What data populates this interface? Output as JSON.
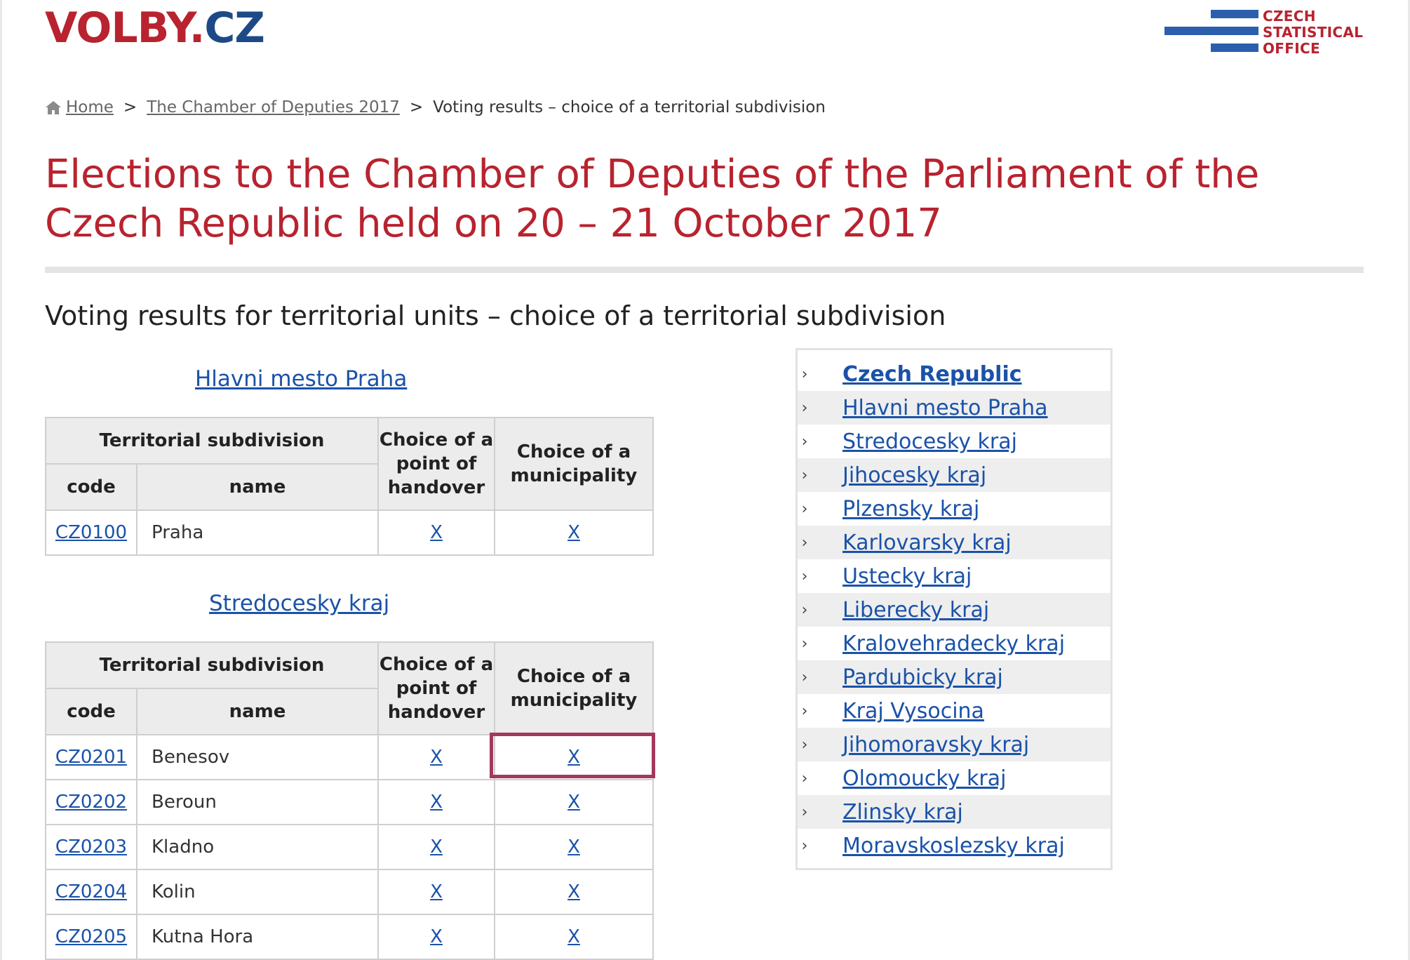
{
  "header": {
    "logo_part1": "VOLBY.",
    "logo_part2": "CZ",
    "cso_line1": "CZECH",
    "cso_line2": "STATISTICAL",
    "cso_line3": "OFFICE"
  },
  "breadcrumb": {
    "home": "Home",
    "sep1": ">",
    "level1": "The Chamber of Deputies 2017",
    "sep2": ">",
    "current": "Voting results – choice of a territorial subdivision"
  },
  "page": {
    "title": "Elections to the Chamber of Deputies of the Parliament of the Czech Republic held on 20 – 21 October 2017",
    "subtitle": "Voting results for territorial units – choice of a territorial subdivision"
  },
  "table_headers": {
    "territorial_subdivision": "Territorial subdivision",
    "code": "code",
    "name": "name",
    "point_of_handover": "Choice of a point of handover",
    "municipality": "Choice of a municipality"
  },
  "sections": [
    {
      "region": "Hlavni mesto Praha",
      "rows": [
        {
          "code": "CZ0100",
          "name": "Praha",
          "point": "X",
          "muni": "X"
        }
      ]
    },
    {
      "region": "Stredocesky kraj",
      "rows": [
        {
          "code": "CZ0201",
          "name": "Benesov",
          "point": "X",
          "muni": "X"
        },
        {
          "code": "CZ0202",
          "name": "Beroun",
          "point": "X",
          "muni": "X"
        },
        {
          "code": "CZ0203",
          "name": "Kladno",
          "point": "X",
          "muni": "X"
        },
        {
          "code": "CZ0204",
          "name": "Kolin",
          "point": "X",
          "muni": "X"
        },
        {
          "code": "CZ0205",
          "name": "Kutna Hora",
          "point": "X",
          "muni": "X"
        }
      ]
    }
  ],
  "regions_nav": [
    "Czech Republic",
    "Hlavni mesto Praha",
    "Stredocesky kraj",
    "Jihocesky kraj",
    "Plzensky kraj",
    "Karlovarsky kraj",
    "Ustecky kraj",
    "Liberecky kraj",
    "Kralovehradecky kraj",
    "Pardubicky kraj",
    "Kraj Vysocina",
    "Jihomoravsky kraj",
    "Olomoucky kraj",
    "Zlinsky kraj",
    "Moravskoslezsky kraj"
  ],
  "colors": {
    "brand_red": "#b8232f",
    "brand_blue": "#1d4a86",
    "link_blue": "#1a52a8",
    "highlight": "#a3385e"
  }
}
